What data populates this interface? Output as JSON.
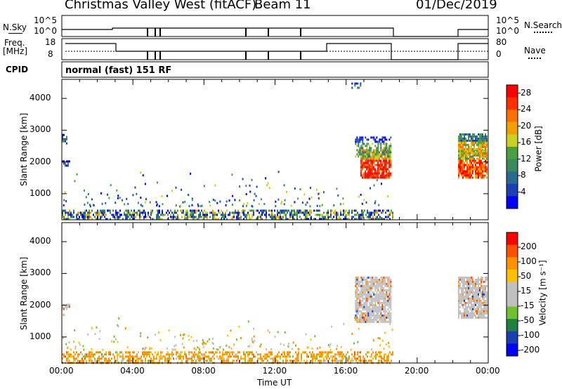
{
  "header": {
    "station": "Christmas Valley West (fitACF)",
    "beam": "Beam 11",
    "date": "01/Dec/2019"
  },
  "panels": {
    "nsky_label": "N.Sky",
    "nsearch_label": "N.Search",
    "nsky_ticks": [
      "10^5",
      "10^0"
    ],
    "freq_label_1": "Freq.",
    "freq_label_2": "[MHz]",
    "freq_ticks": [
      "18",
      "8"
    ],
    "nave_label": "Nave",
    "nave_ticks": [
      "80",
      "0"
    ],
    "cpid_label": "CPID",
    "cpid_text": "normal (fast) 151 RF"
  },
  "colors": {
    "power_scale": [
      "#0000ff",
      "#1c3fb5",
      "#2a6a8c",
      "#3a8a5c",
      "#4aa040",
      "#c8d020",
      "#f0a000",
      "#ff7000",
      "#ff3000",
      "#ff0000"
    ],
    "velocity_scale": [
      "#0000ff",
      "#1a3fb0",
      "#208040",
      "#70c030",
      "#c0c0c0",
      "#c0c0c0",
      "#ffc000",
      "#ff9000",
      "#ff5000",
      "#ff0000"
    ]
  },
  "chart_data": [
    {
      "type": "heatmap",
      "title": "Power",
      "xlabel": "Time UT",
      "ylabel": "Slant Range [km]",
      "x_ticks": [
        "00:00",
        "04:00",
        "08:00",
        "12:00",
        "16:00",
        "20:00",
        "00:00"
      ],
      "x_range_hours": [
        0,
        24
      ],
      "y_ticks": [
        1000,
        2000,
        3000,
        4000
      ],
      "ylim": [
        180,
        4600
      ],
      "colorbar": {
        "label": "Power [dB]",
        "ticks": [
          4,
          8,
          12,
          16,
          20,
          24,
          28
        ],
        "range": [
          0,
          30
        ]
      },
      "regions": [
        {
          "t": [
            0,
            18.6
          ],
          "r": [
            180,
            500
          ],
          "level": "mixed"
        },
        {
          "t": [
            16.8,
            18.5
          ],
          "r": [
            1500,
            2400
          ],
          "level": 26
        },
        {
          "t": [
            16.5,
            18.5
          ],
          "r": [
            2200,
            2800
          ],
          "level": 12
        },
        {
          "t": [
            22.3,
            23.9
          ],
          "r": [
            1500,
            2400
          ],
          "level": 25
        },
        {
          "t": [
            22.3,
            23.9
          ],
          "r": [
            2200,
            2900
          ],
          "level": 18
        },
        {
          "t": [
            0,
            0.4
          ],
          "r": [
            1900,
            2050
          ],
          "level": 6
        },
        {
          "t": [
            0,
            0.3
          ],
          "r": [
            2600,
            2950
          ],
          "level": 10
        },
        {
          "t": [
            16.3,
            16.8
          ],
          "r": [
            4350,
            4500
          ],
          "level": 8
        }
      ]
    },
    {
      "type": "heatmap",
      "title": "Velocity",
      "xlabel": "Time UT",
      "ylabel": "Slant Range [km]",
      "x_ticks": [
        "00:00",
        "04:00",
        "08:00",
        "12:00",
        "16:00",
        "20:00",
        "00:00"
      ],
      "x_range_hours": [
        0,
        24
      ],
      "y_ticks": [
        1000,
        2000,
        3000,
        4000
      ],
      "ylim": [
        180,
        4600
      ],
      "colorbar": {
        "label": "Velocity [m s⁻¹]",
        "ticks": [
          200,
          100,
          50,
          15,
          -15,
          -50,
          -100,
          -200
        ]
      },
      "regions": [
        {
          "t": [
            0,
            18.6
          ],
          "r": [
            180,
            550
          ],
          "level": "orange"
        },
        {
          "t": [
            16.5,
            18.5
          ],
          "r": [
            1500,
            2900
          ],
          "level": "gray"
        },
        {
          "t": [
            22.3,
            23.9
          ],
          "r": [
            1600,
            2900
          ],
          "level": "gray"
        },
        {
          "t": [
            0,
            0.4
          ],
          "r": [
            1900,
            2050
          ],
          "level": "gray"
        }
      ]
    }
  ]
}
